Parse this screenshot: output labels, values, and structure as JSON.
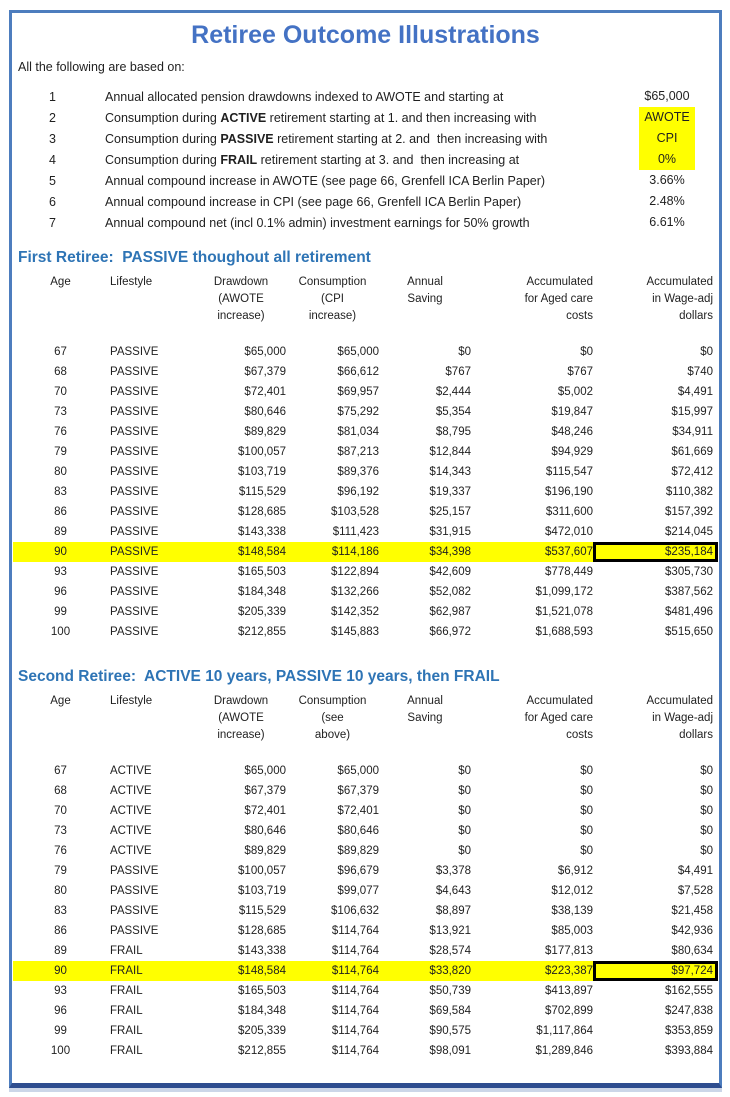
{
  "page": {
    "title": "Retiree Outcome Illustrations",
    "intro": "All the following are based on:"
  },
  "colors": {
    "title_blue": "#4472c4",
    "heading_blue": "#2e74b5",
    "highlight_yellow": "#ffff00",
    "frame_blue": "#4d7dbe"
  },
  "assumptions": {
    "items": [
      {
        "num": "1",
        "text_before": "Annual allocated pension drawdowns indexed to AWOTE and starting at",
        "bold": "",
        "text_after": "",
        "value": "$65,000",
        "highlight": false
      },
      {
        "num": "2",
        "text_before": "Consumption during ",
        "bold": "ACTIVE",
        "text_after": " retirement starting at 1. and then increasing with",
        "value": "AWOTE",
        "highlight": true
      },
      {
        "num": "3",
        "text_before": "Consumption during ",
        "bold": "PASSIVE",
        "text_after": " retirement starting at 2. and  then increasing with",
        "value": "CPI",
        "highlight": true
      },
      {
        "num": "4",
        "text_before": "Consumption during ",
        "bold": "FRAIL",
        "text_after": " retirement starting at 3. and  then increasing at",
        "value": "0%",
        "highlight": true
      },
      {
        "num": "5",
        "text_before": "Annual compound increase in AWOTE (see page 66, Grenfell ICA Berlin Paper)",
        "bold": "",
        "text_after": "",
        "value": "3.66%",
        "highlight": false
      },
      {
        "num": "6",
        "text_before": "Annual compound increase in CPI (see page 66, Grenfell ICA Berlin Paper)",
        "bold": "",
        "text_after": "",
        "value": "2.48%",
        "highlight": false
      },
      {
        "num": "7",
        "text_before": "Annual compound net (incl 0.1% admin) investment earnings for 50% growth",
        "bold": "",
        "text_after": "",
        "value": "6.61%",
        "highlight": false
      }
    ]
  },
  "tables": [
    {
      "heading": "First Retiree:  PASSIVE thoughout all retirement",
      "columns": [
        [
          "Age"
        ],
        [
          "Lifestyle"
        ],
        [
          "Drawdown",
          "(AWOTE",
          "increase)"
        ],
        [
          "Consumption",
          "(CPI",
          "increase)"
        ],
        [
          "Annual",
          "Saving"
        ],
        [
          "Accumulated",
          "for Aged care",
          "costs"
        ],
        [
          "Accumulated",
          "in Wage-adj",
          "dollars"
        ]
      ],
      "highlight_row_index": 10,
      "rows": [
        [
          "67",
          "PASSIVE",
          "$65,000",
          "$65,000",
          "$0",
          "$0",
          "$0"
        ],
        [
          "68",
          "PASSIVE",
          "$67,379",
          "$66,612",
          "$767",
          "$767",
          "$740"
        ],
        [
          "70",
          "PASSIVE",
          "$72,401",
          "$69,957",
          "$2,444",
          "$5,002",
          "$4,491"
        ],
        [
          "73",
          "PASSIVE",
          "$80,646",
          "$75,292",
          "$5,354",
          "$19,847",
          "$15,997"
        ],
        [
          "76",
          "PASSIVE",
          "$89,829",
          "$81,034",
          "$8,795",
          "$48,246",
          "$34,911"
        ],
        [
          "79",
          "PASSIVE",
          "$100,057",
          "$87,213",
          "$12,844",
          "$94,929",
          "$61,669"
        ],
        [
          "80",
          "PASSIVE",
          "$103,719",
          "$89,376",
          "$14,343",
          "$115,547",
          "$72,412"
        ],
        [
          "83",
          "PASSIVE",
          "$115,529",
          "$96,192",
          "$19,337",
          "$196,190",
          "$110,382"
        ],
        [
          "86",
          "PASSIVE",
          "$128,685",
          "$103,528",
          "$25,157",
          "$311,600",
          "$157,392"
        ],
        [
          "89",
          "PASSIVE",
          "$143,338",
          "$111,423",
          "$31,915",
          "$472,010",
          "$214,045"
        ],
        [
          "90",
          "PASSIVE",
          "$148,584",
          "$114,186",
          "$34,398",
          "$537,607",
          "$235,184"
        ],
        [
          "93",
          "PASSIVE",
          "$165,503",
          "$122,894",
          "$42,609",
          "$778,449",
          "$305,730"
        ],
        [
          "96",
          "PASSIVE",
          "$184,348",
          "$132,266",
          "$52,082",
          "$1,099,172",
          "$387,562"
        ],
        [
          "99",
          "PASSIVE",
          "$205,339",
          "$142,352",
          "$62,987",
          "$1,521,078",
          "$481,496"
        ],
        [
          "100",
          "PASSIVE",
          "$212,855",
          "$145,883",
          "$66,972",
          "$1,688,593",
          "$515,650"
        ]
      ]
    },
    {
      "heading": "Second Retiree:  ACTIVE 10 years, PASSIVE 10 years, then FRAIL",
      "columns": [
        [
          "Age"
        ],
        [
          "Lifestyle"
        ],
        [
          "Drawdown",
          "(AWOTE",
          "increase)"
        ],
        [
          "Consumption",
          "(see",
          "above)"
        ],
        [
          "Annual",
          "Saving"
        ],
        [
          "Accumulated",
          "for Aged care",
          "costs"
        ],
        [
          "Accumulated",
          "in Wage-adj",
          "dollars"
        ]
      ],
      "highlight_row_index": 10,
      "rows": [
        [
          "67",
          "ACTIVE",
          "$65,000",
          "$65,000",
          "$0",
          "$0",
          "$0"
        ],
        [
          "68",
          "ACTIVE",
          "$67,379",
          "$67,379",
          "$0",
          "$0",
          "$0"
        ],
        [
          "70",
          "ACTIVE",
          "$72,401",
          "$72,401",
          "$0",
          "$0",
          "$0"
        ],
        [
          "73",
          "ACTIVE",
          "$80,646",
          "$80,646",
          "$0",
          "$0",
          "$0"
        ],
        [
          "76",
          "ACTIVE",
          "$89,829",
          "$89,829",
          "$0",
          "$0",
          "$0"
        ],
        [
          "79",
          "PASSIVE",
          "$100,057",
          "$96,679",
          "$3,378",
          "$6,912",
          "$4,491"
        ],
        [
          "80",
          "PASSIVE",
          "$103,719",
          "$99,077",
          "$4,643",
          "$12,012",
          "$7,528"
        ],
        [
          "83",
          "PASSIVE",
          "$115,529",
          "$106,632",
          "$8,897",
          "$38,139",
          "$21,458"
        ],
        [
          "86",
          "PASSIVE",
          "$128,685",
          "$114,764",
          "$13,921",
          "$85,003",
          "$42,936"
        ],
        [
          "89",
          "FRAIL",
          "$143,338",
          "$114,764",
          "$28,574",
          "$177,813",
          "$80,634"
        ],
        [
          "90",
          "FRAIL",
          "$148,584",
          "$114,764",
          "$33,820",
          "$223,387",
          "$97,724"
        ],
        [
          "93",
          "FRAIL",
          "$165,503",
          "$114,764",
          "$50,739",
          "$413,897",
          "$162,555"
        ],
        [
          "96",
          "FRAIL",
          "$184,348",
          "$114,764",
          "$69,584",
          "$702,899",
          "$247,838"
        ],
        [
          "99",
          "FRAIL",
          "$205,339",
          "$114,764",
          "$90,575",
          "$1,117,864",
          "$353,859"
        ],
        [
          "100",
          "FRAIL",
          "$212,855",
          "$114,764",
          "$98,091",
          "$1,289,846",
          "$393,884"
        ]
      ]
    }
  ]
}
